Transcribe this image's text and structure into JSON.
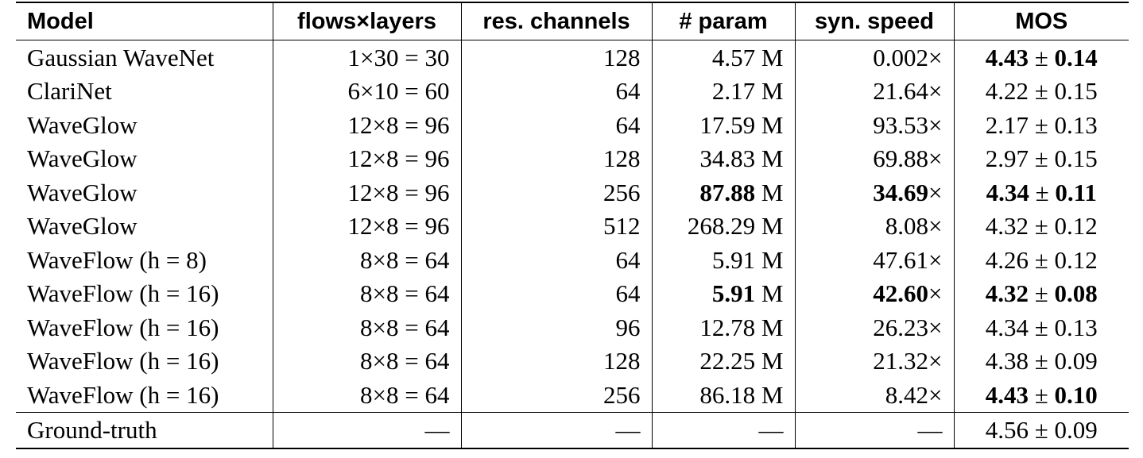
{
  "table": {
    "header": [
      "Model",
      "flows×layers",
      "res. channels",
      "# param",
      "syn. speed",
      "MOS"
    ],
    "rows": [
      [
        "Gaussian WaveNet",
        "1×30 = 30",
        "128",
        {
          "number": "4.57",
          "unit": "M"
        },
        {
          "number": "0.002",
          "unit": "×"
        },
        {
          "mean": "4.43",
          "pm": "±",
          "sd": "0.14",
          "bold": true
        }
      ],
      [
        "ClariNet",
        "6×10 = 60",
        "64",
        {
          "number": "2.17",
          "unit": "M"
        },
        {
          "number": "21.64",
          "unit": "×"
        },
        {
          "mean": "4.22",
          "pm": "±",
          "sd": "0.15"
        }
      ],
      [
        "WaveGlow",
        "12×8 = 96",
        "64",
        {
          "number": "17.59",
          "unit": "M"
        },
        {
          "number": "93.53",
          "unit": "×"
        },
        {
          "mean": "2.17",
          "pm": "±",
          "sd": "0.13"
        }
      ],
      [
        "WaveGlow",
        "12×8 = 96",
        "128",
        {
          "number": "34.83",
          "unit": "M"
        },
        {
          "number": "69.88",
          "unit": "×"
        },
        {
          "mean": "2.97",
          "pm": "±",
          "sd": "0.15"
        }
      ],
      [
        "WaveGlow",
        "12×8 = 96",
        "256",
        {
          "number": "87.88",
          "unit": "M",
          "bold": true
        },
        {
          "number": "34.69",
          "unit": "×",
          "bold": true
        },
        {
          "mean": "4.34",
          "pm": "±",
          "sd": "0.11",
          "bold": true
        }
      ],
      [
        "WaveGlow",
        "12×8 = 96",
        "512",
        {
          "number": "268.29",
          "unit": "M"
        },
        {
          "number": "8.08",
          "unit": "×"
        },
        {
          "mean": "4.32",
          "pm": "±",
          "sd": "0.12"
        }
      ],
      [
        "WaveFlow (h = 8)",
        "8×8 = 64",
        "64",
        {
          "number": "5.91",
          "unit": "M"
        },
        {
          "number": "47.61",
          "unit": "×"
        },
        {
          "mean": "4.26",
          "pm": "±",
          "sd": "0.12"
        }
      ],
      [
        "WaveFlow (h = 16)",
        "8×8 = 64",
        "64",
        {
          "number": "5.91",
          "unit": "M",
          "bold": true
        },
        {
          "number": "42.60",
          "unit": "×",
          "bold": true
        },
        {
          "mean": "4.32",
          "pm": "±",
          "sd": "0.08",
          "bold": true
        }
      ],
      [
        "WaveFlow (h = 16)",
        "8×8 = 64",
        "96",
        {
          "number": "12.78",
          "unit": "M"
        },
        {
          "number": "26.23",
          "unit": "×"
        },
        {
          "mean": "4.34",
          "pm": "±",
          "sd": "0.13"
        }
      ],
      [
        "WaveFlow (h = 16)",
        "8×8 = 64",
        "128",
        {
          "number": "22.25",
          "unit": "M"
        },
        {
          "number": "21.32",
          "unit": "×"
        },
        {
          "mean": "4.38",
          "pm": "±",
          "sd": "0.09"
        }
      ],
      [
        "WaveFlow (h = 16)",
        "8×8 = 64",
        "256",
        {
          "number": "86.18",
          "unit": "M"
        },
        {
          "number": "8.42",
          "unit": "×"
        },
        {
          "mean": "4.43",
          "pm": "±",
          "sd": "0.10",
          "bold": true
        }
      ],
      [
        "Ground-truth",
        "—",
        "—",
        "—",
        "—",
        {
          "mean": "4.56",
          "pm": "±",
          "sd": "0.09"
        }
      ]
    ]
  }
}
